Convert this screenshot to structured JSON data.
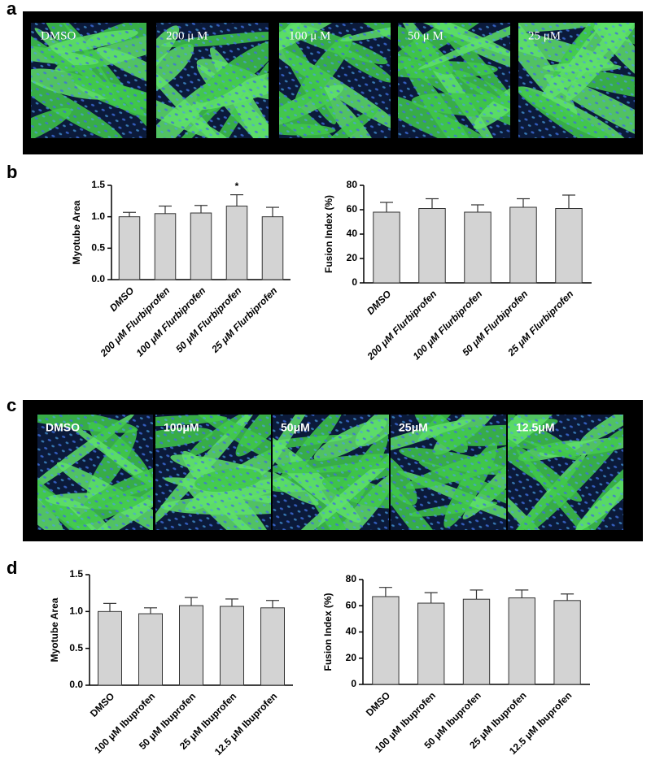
{
  "panels": {
    "a": {
      "letter": "a",
      "labels": [
        "DMSO",
        "200 μ M",
        "100 μ M",
        "50 μ M",
        "25 μM"
      ]
    },
    "b": {
      "letter": "b"
    },
    "c": {
      "letter": "c",
      "labels": [
        "DMSO",
        "100μM",
        "50μM",
        "25μM",
        "12.5μM"
      ]
    },
    "d": {
      "letter": "d"
    }
  },
  "chart_data": [
    {
      "type": "bar",
      "y_label": "Myotube Area",
      "italic": true,
      "categories": [
        "DMSO",
        "200 μM Flurbiprofen",
        "100 μM Flurbiprofen",
        "50 μM Flurbiprofen",
        "25 μM Flurbiprofen"
      ],
      "values": [
        1.0,
        1.05,
        1.06,
        1.17,
        1.0
      ],
      "errors": [
        0.07,
        0.12,
        0.12,
        0.18,
        0.15
      ],
      "annotations": [
        null,
        null,
        null,
        "*",
        null
      ],
      "color": "#d3d3d3",
      "ylim": [
        0,
        1.5
      ],
      "yticks": [
        {
          "value": 0,
          "label": "0.0"
        },
        {
          "value": 0.5,
          "label": "0.5"
        },
        {
          "value": 1,
          "label": "1.0"
        },
        {
          "value": 1.5,
          "label": "1.5"
        }
      ]
    },
    {
      "type": "bar",
      "y_label": "Fusion Index (%)",
      "italic": true,
      "categories": [
        "DMSO",
        "200 μM Flurbiprofen",
        "100 μM Flurbiprofen",
        "50 μM Flurbiprofen",
        "25 μM Flurbiprofen"
      ],
      "values": [
        58,
        61,
        58,
        62,
        61
      ],
      "errors": [
        8,
        8,
        6,
        7,
        11
      ],
      "color": "#d3d3d3",
      "ylim": [
        0,
        80
      ],
      "yticks": [
        0,
        20,
        40,
        60,
        80
      ]
    },
    {
      "type": "bar",
      "y_label": "Myotube Area",
      "italic": false,
      "categories": [
        "DMSO",
        "100 μM Ibuprofen",
        "50 μM Ibuprofen",
        "25 μM Ibuprofen",
        "12.5 μM Ibuprofen"
      ],
      "values": [
        1.0,
        0.97,
        1.08,
        1.07,
        1.05
      ],
      "errors": [
        0.11,
        0.08,
        0.11,
        0.1,
        0.1
      ],
      "color": "#d3d3d3",
      "ylim": [
        0,
        1.5
      ],
      "yticks": [
        {
          "value": 0,
          "label": "0.0"
        },
        {
          "value": 0.5,
          "label": "0.5"
        },
        {
          "value": 1,
          "label": "1.0"
        },
        {
          "value": 1.5,
          "label": "1.5"
        }
      ]
    },
    {
      "type": "bar",
      "y_label": "Fusion Index (%)",
      "italic": false,
      "categories": [
        "DMSO",
        "100 μM Ibuprofen",
        "50 μM Ibuprofen",
        "25 μM Ibuprofen",
        "12.5 μM Ibuprofen"
      ],
      "values": [
        67,
        62,
        65,
        66,
        64
      ],
      "errors": [
        7,
        8,
        7,
        6,
        5
      ],
      "color": "#d3d3d3",
      "ylim": [
        0,
        80
      ],
      "yticks": [
        0,
        20,
        40,
        60,
        80
      ]
    }
  ]
}
